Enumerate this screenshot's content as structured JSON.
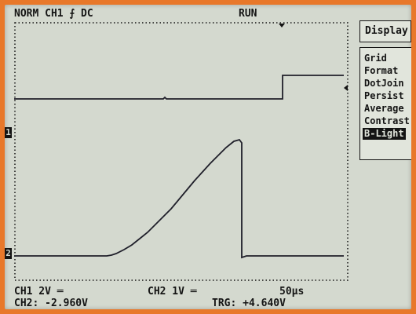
{
  "status": {
    "mode": "NORM CH1 ⨍ DC",
    "run": "RUN"
  },
  "menu": {
    "title": "Display",
    "items": [
      {
        "label": "Grid",
        "selected": false
      },
      {
        "label": "Format",
        "selected": false
      },
      {
        "label": "DotJoin",
        "selected": false
      },
      {
        "label": "Persist",
        "selected": false
      },
      {
        "label": "Average",
        "selected": false
      },
      {
        "label": "Contrast",
        "selected": false
      },
      {
        "label": "B-Light",
        "selected": true
      }
    ]
  },
  "markers": {
    "ch1": "1",
    "ch2": "2"
  },
  "scales": {
    "ch1": "CH1 2V ═",
    "ch2": "CH2 1V ═",
    "timebase": "50µs"
  },
  "readouts": {
    "ch2": "CH2: -2.960V",
    "trg": "TRG: +4.640V"
  },
  "colors": {
    "screen": "#d4d9cf",
    "trace": "#1f1f2a",
    "bezel": "#e8782a"
  }
}
